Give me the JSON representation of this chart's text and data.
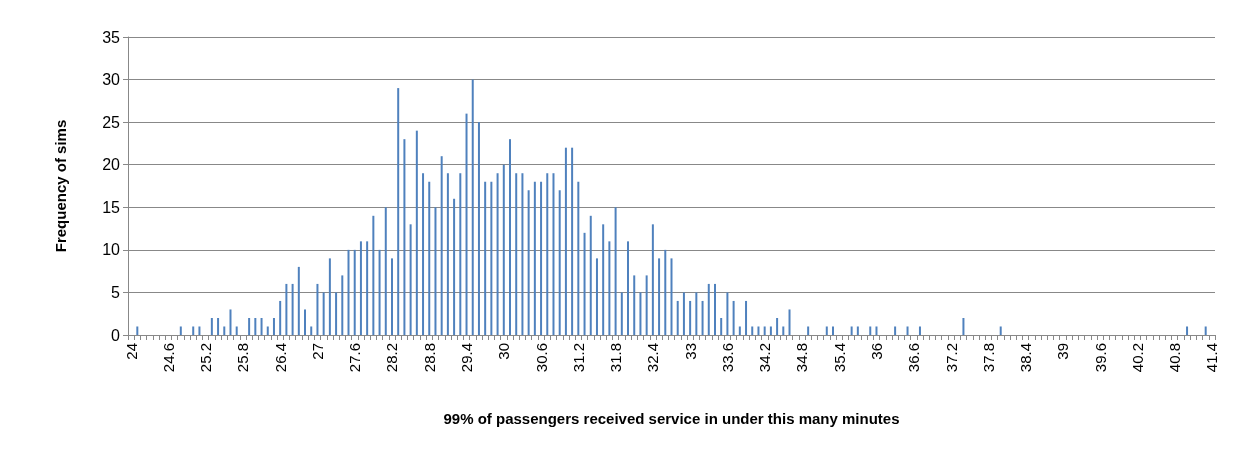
{
  "chart_data": {
    "type": "bar",
    "xlabel": "99% of passengers received service in under this many minutes",
    "ylabel": "Frequency of sims",
    "categories": [
      "24",
      null,
      null,
      null,
      null,
      null,
      "24.6",
      null,
      null,
      null,
      null,
      null,
      "25.2",
      null,
      null,
      null,
      null,
      null,
      "25.8",
      null,
      null,
      null,
      null,
      null,
      "26.4",
      null,
      null,
      null,
      null,
      null,
      "27",
      null,
      null,
      null,
      null,
      null,
      "27.6",
      null,
      null,
      null,
      null,
      null,
      "28.2",
      null,
      null,
      null,
      null,
      null,
      "28.8",
      null,
      null,
      null,
      null,
      null,
      "29.4",
      null,
      null,
      null,
      null,
      null,
      "30",
      null,
      null,
      null,
      null,
      null,
      "30.6",
      null,
      null,
      null,
      null,
      null,
      "31.2",
      null,
      null,
      null,
      null,
      null,
      "31.8",
      null,
      null,
      null,
      null,
      null,
      "32.4",
      null,
      null,
      null,
      null,
      null,
      "33",
      null,
      null,
      null,
      null,
      null,
      "33.6",
      null,
      null,
      null,
      null,
      null,
      "34.2",
      null,
      null,
      null,
      null,
      null,
      "34.8",
      null,
      null,
      null,
      null,
      null,
      "35.4",
      null,
      null,
      null,
      null,
      null,
      "36",
      null,
      null,
      null,
      null,
      null,
      "36.6",
      null,
      null,
      null,
      null,
      null,
      "37.2",
      null,
      null,
      null,
      null,
      null,
      "37.8",
      null,
      null,
      null,
      null,
      null,
      "38.4",
      null,
      null,
      null,
      null,
      null,
      "39",
      null,
      null,
      null,
      null,
      null,
      "39.6",
      null,
      null,
      null,
      null,
      null,
      "40.2",
      null,
      null,
      null,
      null,
      null,
      "40.8",
      null,
      null,
      null,
      null,
      null,
      "41.4"
    ],
    "values": [
      0,
      1,
      0,
      0,
      0,
      0,
      0,
      0,
      1,
      0,
      1,
      1,
      0,
      2,
      2,
      1,
      3,
      1,
      0,
      2,
      2,
      2,
      1,
      2,
      4,
      6,
      6,
      8,
      3,
      1,
      6,
      5,
      9,
      5,
      7,
      10,
      10,
      11,
      11,
      14,
      10,
      15,
      9,
      29,
      23,
      13,
      24,
      19,
      18,
      15,
      21,
      19,
      16,
      19,
      26,
      30,
      25,
      18,
      18,
      19,
      20,
      23,
      19,
      19,
      17,
      18,
      18,
      19,
      19,
      17,
      22,
      22,
      18,
      12,
      14,
      9,
      13,
      11,
      15,
      5,
      11,
      7,
      5,
      7,
      13,
      9,
      10,
      9,
      4,
      5,
      4,
      5,
      4,
      6,
      6,
      2,
      5,
      4,
      1,
      4,
      1,
      1,
      1,
      1,
      2,
      1,
      3,
      0,
      0,
      1,
      0,
      0,
      1,
      1,
      0,
      0,
      1,
      1,
      0,
      1,
      1,
      0,
      0,
      1,
      0,
      1,
      0,
      1,
      0,
      0,
      0,
      0,
      0,
      0,
      2,
      0,
      0,
      0,
      0,
      0,
      1,
      0,
      0,
      0,
      0,
      0,
      0,
      0,
      0,
      0,
      0,
      0,
      0,
      0,
      0,
      0,
      0,
      0,
      0,
      0,
      0,
      0,
      0,
      0,
      0,
      0,
      0,
      0,
      0,
      0,
      1,
      0,
      0,
      1,
      0
    ],
    "color": "#4f81bd",
    "ylim": [
      0,
      35
    ],
    "yticks": [
      0,
      5,
      10,
      15,
      20,
      25,
      30,
      35
    ],
    "grid": "y"
  }
}
